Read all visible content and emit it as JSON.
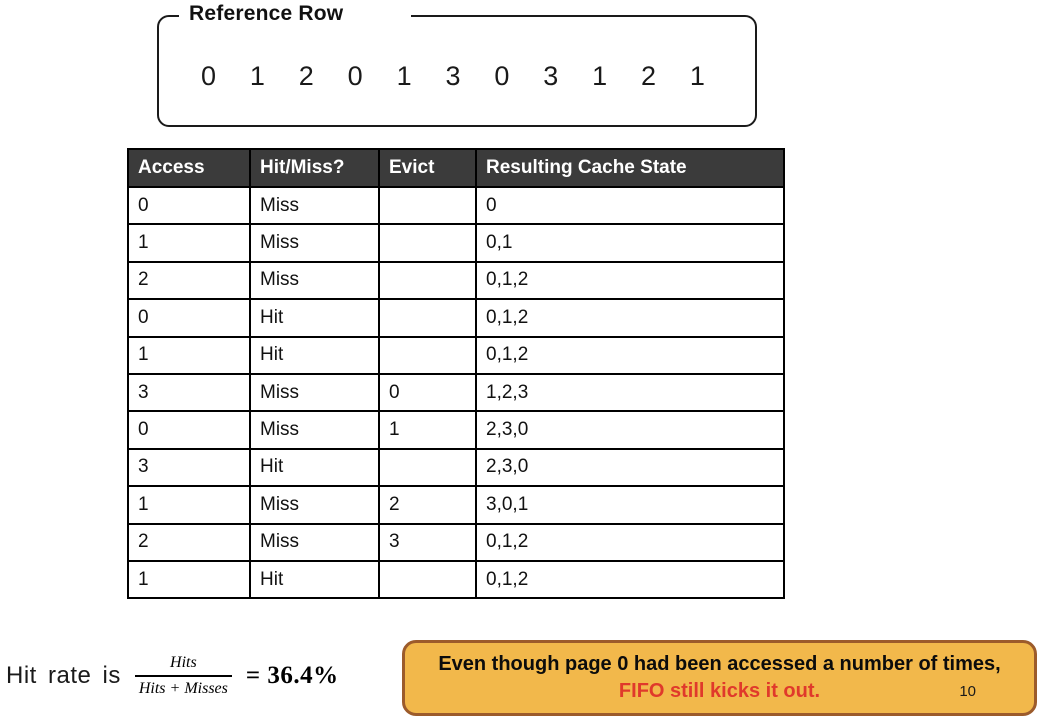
{
  "reference_row": {
    "title": "Reference Row",
    "values": [
      "0",
      "1",
      "2",
      "0",
      "1",
      "3",
      "0",
      "3",
      "1",
      "2",
      "1"
    ]
  },
  "table": {
    "headers": [
      "Access",
      "Hit/Miss?",
      "Evict",
      "Resulting Cache State"
    ],
    "rows": [
      [
        "0",
        "Miss",
        "",
        "0"
      ],
      [
        "1",
        "Miss",
        "",
        "0,1"
      ],
      [
        "2",
        "Miss",
        "",
        "0,1,2"
      ],
      [
        "0",
        "Hit",
        "",
        "0,1,2"
      ],
      [
        "1",
        "Hit",
        "",
        "0,1,2"
      ],
      [
        "3",
        "Miss",
        "0",
        "1,2,3"
      ],
      [
        "0",
        "Miss",
        "1",
        "2,3,0"
      ],
      [
        "3",
        "Hit",
        "",
        "2,3,0"
      ],
      [
        "1",
        "Miss",
        "2",
        "3,0,1"
      ],
      [
        "2",
        "Miss",
        "3",
        "0,1,2"
      ],
      [
        "1",
        "Hit",
        "",
        "0,1,2"
      ]
    ]
  },
  "hit_rate": {
    "prefix": "Hit rate is",
    "numerator": "Hits",
    "denominator": "Hits + Misses",
    "result": "= 36.4%"
  },
  "callout": {
    "text_black": "Even though page 0 had been accessed a number of times,",
    "text_red": "FIFO still kicks it out.",
    "page_number": "10"
  },
  "colors": {
    "table_header_bg": "#3B3B3B",
    "table_header_text": "#FFFFFF",
    "callout_bg": "#F2B84B",
    "callout_border": "#9C5B2B",
    "callout_red_text": "#E0392B"
  }
}
